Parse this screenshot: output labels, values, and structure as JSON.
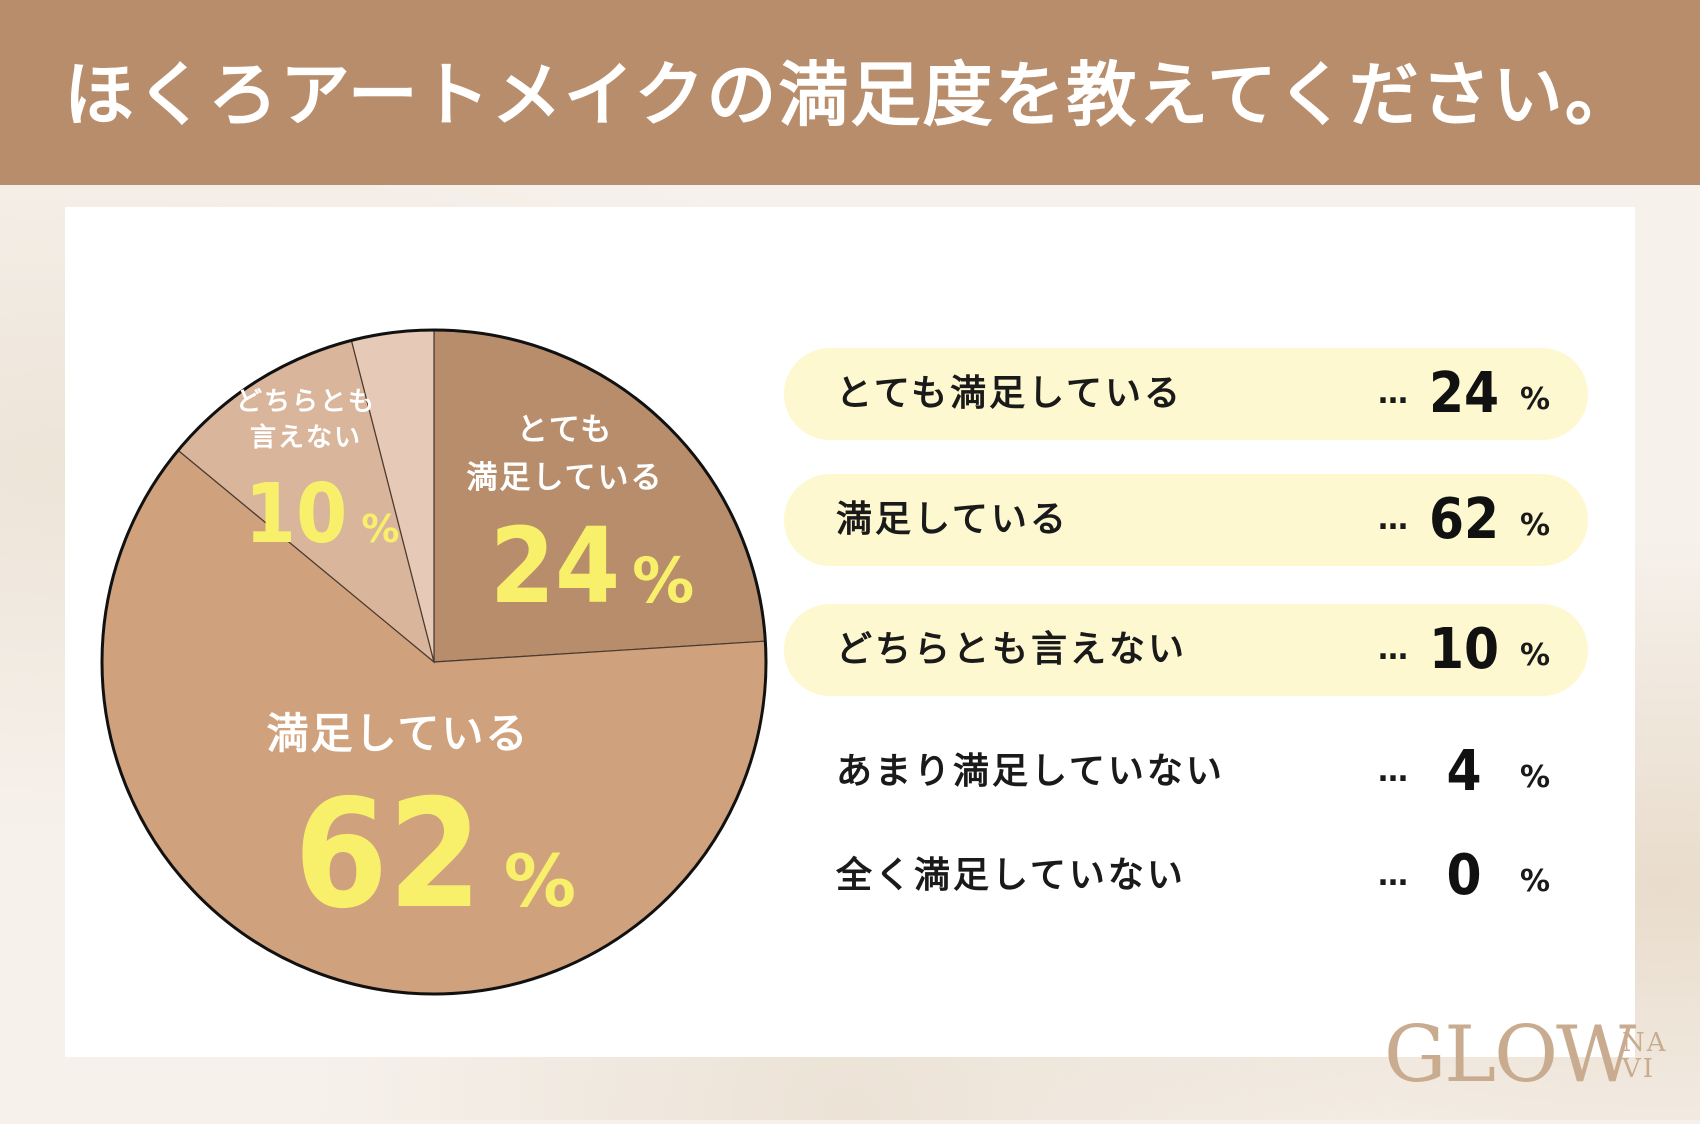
{
  "title": "ほくろアートメイクの満足度を教えてください。",
  "chart_data": {
    "type": "pie",
    "categories": [
      "とても満足している",
      "満足している",
      "どちらとも言えない",
      "あまり満足していない",
      "全く満足していない"
    ],
    "values": [
      24,
      62,
      10,
      4,
      0
    ],
    "colors": [
      "#b88d6c",
      "#cfa27d",
      "#d9b59b",
      "#e6c9b6",
      "#eee0d4"
    ],
    "slice_labels": [
      {
        "lines": [
          "とても",
          "満足している"
        ],
        "value": "24",
        "unit": "%"
      },
      {
        "lines": [
          "満足している"
        ],
        "value": "62",
        "unit": "%"
      },
      {
        "lines": [
          "どちらとも",
          "言えない"
        ],
        "value": "10",
        "unit": "%"
      }
    ]
  },
  "legend": {
    "items": [
      {
        "label": "とても満足している",
        "value": "24",
        "unit": "%",
        "highlight": true
      },
      {
        "label": "満足している",
        "value": "62",
        "unit": "%",
        "highlight": true
      },
      {
        "label": "どちらとも言えない",
        "value": "10",
        "unit": "%",
        "highlight": true
      },
      {
        "label": "あまり満足していない",
        "value": "4",
        "unit": "%",
        "highlight": false
      },
      {
        "label": "全く満足していない",
        "value": "0",
        "unit": "%",
        "highlight": false
      }
    ],
    "separator": "…"
  },
  "logo": {
    "main": "GLOW",
    "sub_top": "NA",
    "sub_bottom": "VI"
  }
}
